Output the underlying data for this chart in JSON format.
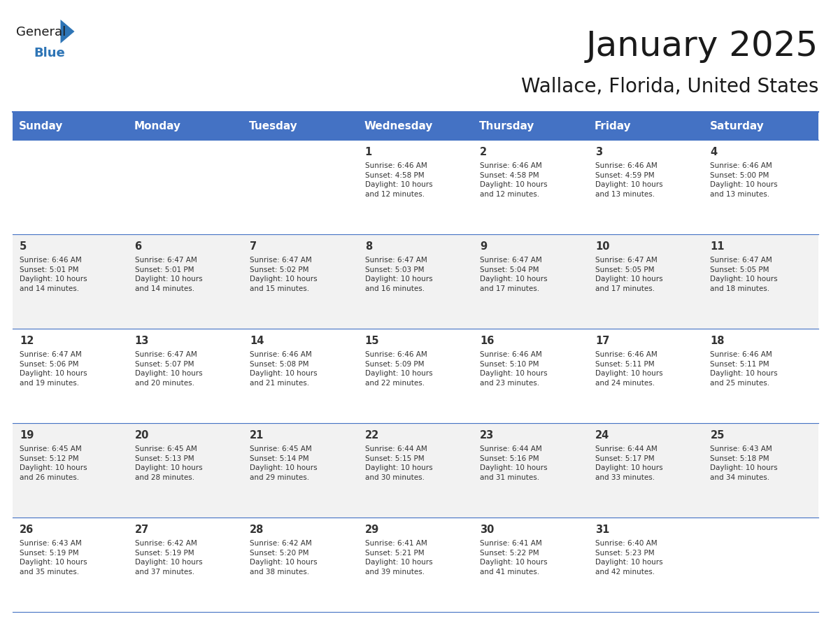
{
  "title": "January 2025",
  "subtitle": "Wallace, Florida, United States",
  "header_bg": "#4472C4",
  "header_text_color": "#FFFFFF",
  "header_font_size": 11,
  "day_names": [
    "Sunday",
    "Monday",
    "Tuesday",
    "Wednesday",
    "Thursday",
    "Friday",
    "Saturday"
  ],
  "title_font_size": 36,
  "subtitle_font_size": 20,
  "cell_text_color": "#333333",
  "alt_row_bg": "#F2F2F2",
  "white_bg": "#FFFFFF",
  "line_color": "#4472C4",
  "calendar": [
    [
      {
        "day": "",
        "info": ""
      },
      {
        "day": "",
        "info": ""
      },
      {
        "day": "",
        "info": ""
      },
      {
        "day": "1",
        "info": "Sunrise: 6:46 AM\nSunset: 4:58 PM\nDaylight: 10 hours\nand 12 minutes."
      },
      {
        "day": "2",
        "info": "Sunrise: 6:46 AM\nSunset: 4:58 PM\nDaylight: 10 hours\nand 12 minutes."
      },
      {
        "day": "3",
        "info": "Sunrise: 6:46 AM\nSunset: 4:59 PM\nDaylight: 10 hours\nand 13 minutes."
      },
      {
        "day": "4",
        "info": "Sunrise: 6:46 AM\nSunset: 5:00 PM\nDaylight: 10 hours\nand 13 minutes."
      }
    ],
    [
      {
        "day": "5",
        "info": "Sunrise: 6:46 AM\nSunset: 5:01 PM\nDaylight: 10 hours\nand 14 minutes."
      },
      {
        "day": "6",
        "info": "Sunrise: 6:47 AM\nSunset: 5:01 PM\nDaylight: 10 hours\nand 14 minutes."
      },
      {
        "day": "7",
        "info": "Sunrise: 6:47 AM\nSunset: 5:02 PM\nDaylight: 10 hours\nand 15 minutes."
      },
      {
        "day": "8",
        "info": "Sunrise: 6:47 AM\nSunset: 5:03 PM\nDaylight: 10 hours\nand 16 minutes."
      },
      {
        "day": "9",
        "info": "Sunrise: 6:47 AM\nSunset: 5:04 PM\nDaylight: 10 hours\nand 17 minutes."
      },
      {
        "day": "10",
        "info": "Sunrise: 6:47 AM\nSunset: 5:05 PM\nDaylight: 10 hours\nand 17 minutes."
      },
      {
        "day": "11",
        "info": "Sunrise: 6:47 AM\nSunset: 5:05 PM\nDaylight: 10 hours\nand 18 minutes."
      }
    ],
    [
      {
        "day": "12",
        "info": "Sunrise: 6:47 AM\nSunset: 5:06 PM\nDaylight: 10 hours\nand 19 minutes."
      },
      {
        "day": "13",
        "info": "Sunrise: 6:47 AM\nSunset: 5:07 PM\nDaylight: 10 hours\nand 20 minutes."
      },
      {
        "day": "14",
        "info": "Sunrise: 6:46 AM\nSunset: 5:08 PM\nDaylight: 10 hours\nand 21 minutes."
      },
      {
        "day": "15",
        "info": "Sunrise: 6:46 AM\nSunset: 5:09 PM\nDaylight: 10 hours\nand 22 minutes."
      },
      {
        "day": "16",
        "info": "Sunrise: 6:46 AM\nSunset: 5:10 PM\nDaylight: 10 hours\nand 23 minutes."
      },
      {
        "day": "17",
        "info": "Sunrise: 6:46 AM\nSunset: 5:11 PM\nDaylight: 10 hours\nand 24 minutes."
      },
      {
        "day": "18",
        "info": "Sunrise: 6:46 AM\nSunset: 5:11 PM\nDaylight: 10 hours\nand 25 minutes."
      }
    ],
    [
      {
        "day": "19",
        "info": "Sunrise: 6:45 AM\nSunset: 5:12 PM\nDaylight: 10 hours\nand 26 minutes."
      },
      {
        "day": "20",
        "info": "Sunrise: 6:45 AM\nSunset: 5:13 PM\nDaylight: 10 hours\nand 28 minutes."
      },
      {
        "day": "21",
        "info": "Sunrise: 6:45 AM\nSunset: 5:14 PM\nDaylight: 10 hours\nand 29 minutes."
      },
      {
        "day": "22",
        "info": "Sunrise: 6:44 AM\nSunset: 5:15 PM\nDaylight: 10 hours\nand 30 minutes."
      },
      {
        "day": "23",
        "info": "Sunrise: 6:44 AM\nSunset: 5:16 PM\nDaylight: 10 hours\nand 31 minutes."
      },
      {
        "day": "24",
        "info": "Sunrise: 6:44 AM\nSunset: 5:17 PM\nDaylight: 10 hours\nand 33 minutes."
      },
      {
        "day": "25",
        "info": "Sunrise: 6:43 AM\nSunset: 5:18 PM\nDaylight: 10 hours\nand 34 minutes."
      }
    ],
    [
      {
        "day": "26",
        "info": "Sunrise: 6:43 AM\nSunset: 5:19 PM\nDaylight: 10 hours\nand 35 minutes."
      },
      {
        "day": "27",
        "info": "Sunrise: 6:42 AM\nSunset: 5:19 PM\nDaylight: 10 hours\nand 37 minutes."
      },
      {
        "day": "28",
        "info": "Sunrise: 6:42 AM\nSunset: 5:20 PM\nDaylight: 10 hours\nand 38 minutes."
      },
      {
        "day": "29",
        "info": "Sunrise: 6:41 AM\nSunset: 5:21 PM\nDaylight: 10 hours\nand 39 minutes."
      },
      {
        "day": "30",
        "info": "Sunrise: 6:41 AM\nSunset: 5:22 PM\nDaylight: 10 hours\nand 41 minutes."
      },
      {
        "day": "31",
        "info": "Sunrise: 6:40 AM\nSunset: 5:23 PM\nDaylight: 10 hours\nand 42 minutes."
      },
      {
        "day": "",
        "info": ""
      }
    ]
  ]
}
